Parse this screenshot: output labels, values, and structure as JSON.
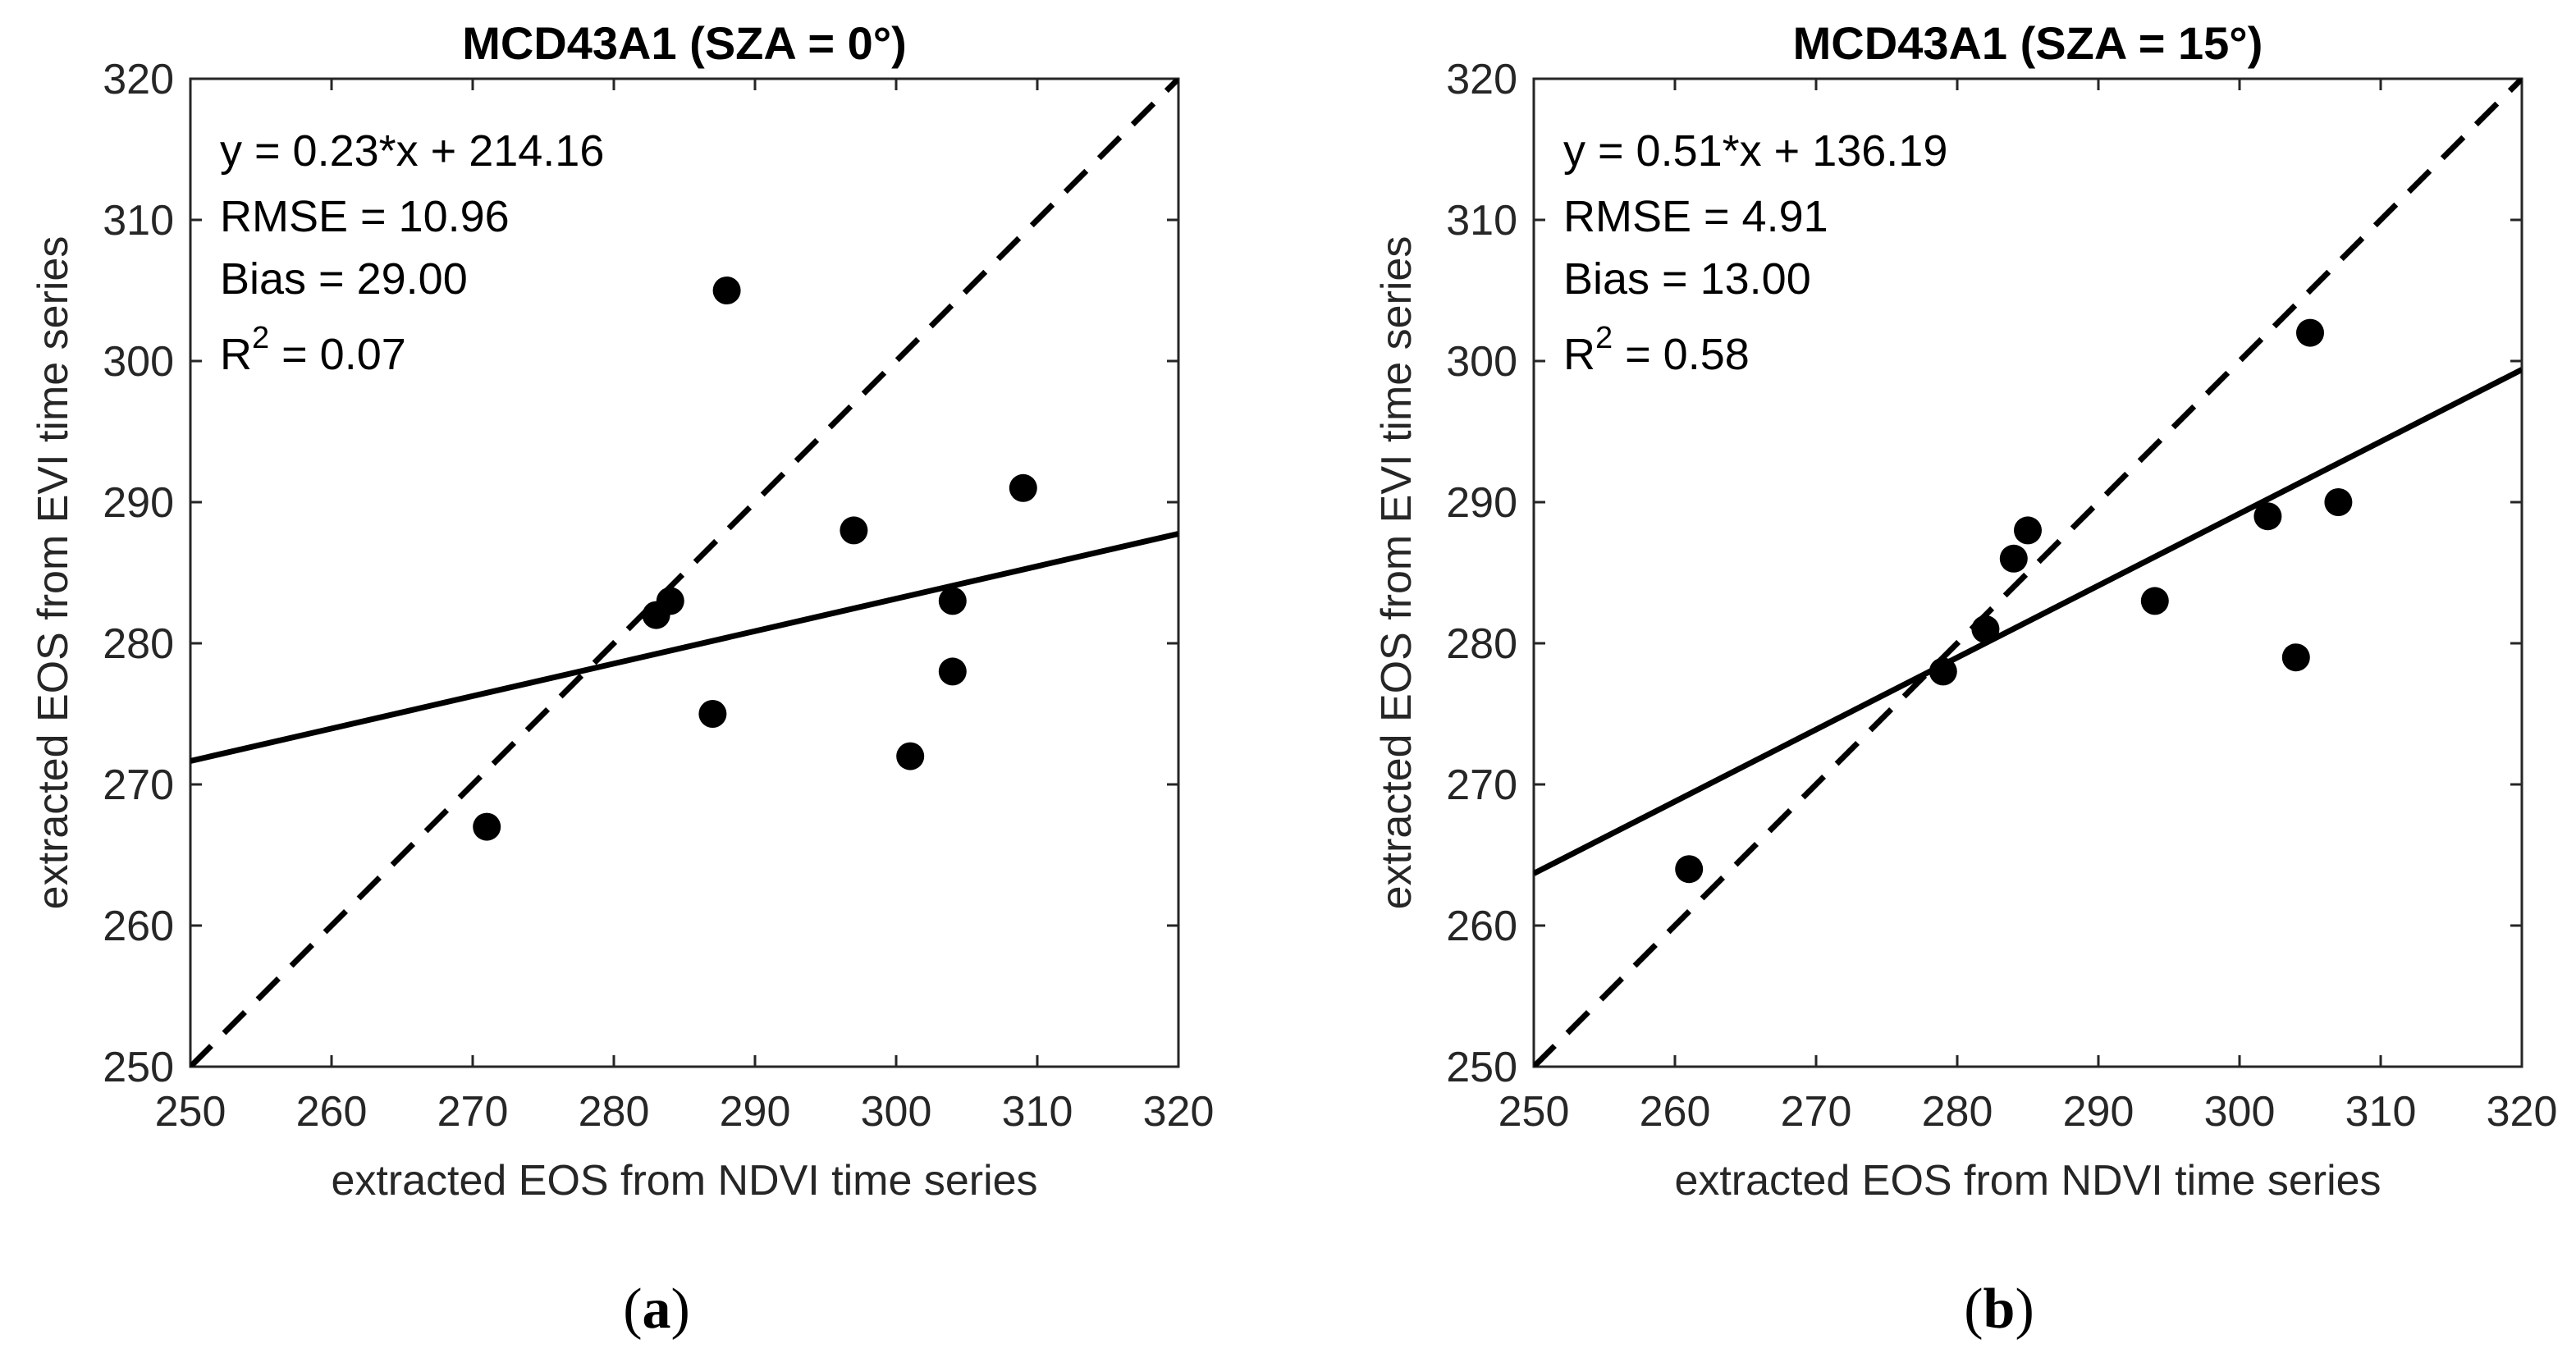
{
  "chart_data": [
    {
      "type": "scatter",
      "title": "MCD43A1 (SZA = 0°)",
      "xlabel": "extracted EOS from NDVI time series",
      "ylabel": "extracted EOS from EVI time series",
      "xlim": [
        250,
        320
      ],
      "ylim": [
        250,
        320
      ],
      "xticks": [
        250,
        260,
        270,
        280,
        290,
        300,
        310,
        320
      ],
      "yticks": [
        250,
        260,
        270,
        280,
        290,
        300,
        310,
        320
      ],
      "grid": false,
      "points": {
        "x": [
          271,
          283,
          284,
          287,
          288,
          297,
          301,
          304,
          304,
          309
        ],
        "y": [
          267,
          282,
          283,
          275,
          305,
          288,
          272,
          283,
          278,
          291
        ]
      },
      "fit_line": {
        "slope": 0.23,
        "intercept": 214.16
      },
      "identity_line": true,
      "annotations": {
        "equation": "y = 0.23*x + 214.16",
        "rmse": "RMSE = 10.96",
        "bias": "Bias = 29.00",
        "r2_label": "R",
        "r2_sup": "2",
        "r2_value": " = 0.07"
      },
      "panel_label": {
        "open": "(",
        "letter": "a",
        "close": ")"
      }
    },
    {
      "type": "scatter",
      "title": "MCD43A1 (SZA = 15°)",
      "xlabel": "extracted EOS from NDVI time series",
      "ylabel": "extracted EOS from EVI time series",
      "xlim": [
        250,
        320
      ],
      "ylim": [
        250,
        320
      ],
      "xticks": [
        250,
        260,
        270,
        280,
        290,
        300,
        310,
        320
      ],
      "yticks": [
        250,
        260,
        270,
        280,
        290,
        300,
        310,
        320
      ],
      "grid": false,
      "points": {
        "x": [
          261,
          279,
          282,
          284,
          285,
          294,
          302,
          304,
          305,
          307
        ],
        "y": [
          264,
          278,
          281,
          286,
          288,
          283,
          289,
          279,
          302,
          290
        ]
      },
      "fit_line": {
        "slope": 0.51,
        "intercept": 136.19
      },
      "identity_line": true,
      "annotations": {
        "equation": "y = 0.51*x + 136.19",
        "rmse": "RMSE = 4.91",
        "bias": "Bias = 13.00",
        "r2_label": "R",
        "r2_sup": "2",
        "r2_value": " = 0.58"
      },
      "panel_label": {
        "open": "(",
        "letter": "b",
        "close": ")"
      }
    }
  ]
}
